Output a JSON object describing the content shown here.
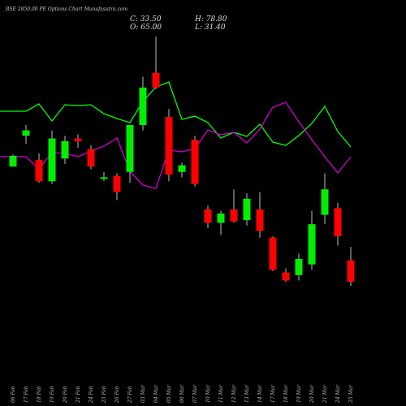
{
  "header": {
    "title": "BSE 2850.00 PE Options Chart Munafasutra.com",
    "close": "C: 33.50",
    "open": "O: 65.00",
    "high": "H: 78.80",
    "low": "L: 31.40"
  },
  "colors": {
    "background": "#000000",
    "up": "#00ee00",
    "down": "#ff0000",
    "line_green": "#00ff00",
    "line_magenta": "#cc00cc"
  },
  "chart_data": {
    "type": "candlestick",
    "title": "BSE 2850.00 PE Options Chart",
    "dates": [
      "06 Feb",
      "17 Feb",
      "18 Feb",
      "19 Feb",
      "20 Feb",
      "21 Feb",
      "24 Feb",
      "25 Feb",
      "26 Feb",
      "27 Feb",
      "03 Mar",
      "04 Mar",
      "05 Mar",
      "06 Mar",
      "07 Mar",
      "10 Mar",
      "11 Mar",
      "12 Mar",
      "13 Mar",
      "14 Mar",
      "17 Mar",
      "18 Mar",
      "19 Mar",
      "20 Mar",
      "21 Mar",
      "24 Mar",
      "25 Mar"
    ],
    "ohlc": [
      [
        84.5,
        89.0,
        84.5,
        88.5
      ],
      [
        96.0,
        100.0,
        93.0,
        98.0
      ],
      [
        87.0,
        89.5,
        78.5,
        79.0
      ],
      [
        79.0,
        98.0,
        78.0,
        95.0
      ],
      [
        87.5,
        96.0,
        85.5,
        94.0
      ],
      [
        95.0,
        96.5,
        91.5,
        94.0
      ],
      [
        91.0,
        92.5,
        83.5,
        84.5
      ],
      [
        80.0,
        82.5,
        79.0,
        80.5
      ],
      [
        81.0,
        82.0,
        72.0,
        75.0
      ],
      [
        82.5,
        100.0,
        78.5,
        100.0
      ],
      [
        100.0,
        118.0,
        98.0,
        114.0
      ],
      [
        119.5,
        133.0,
        113.5,
        114.0
      ],
      [
        103.0,
        106.0,
        79.0,
        81.5
      ],
      [
        82.5,
        86.0,
        80.5,
        85.0
      ],
      [
        94.5,
        96.0,
        77.0,
        78.0
      ],
      [
        68.5,
        70.0,
        61.5,
        63.5
      ],
      [
        63.5,
        68.0,
        59.0,
        67.0
      ],
      [
        68.5,
        76.0,
        63.5,
        64.0
      ],
      [
        64.5,
        74.5,
        62.5,
        72.5
      ],
      [
        68.5,
        75.0,
        58.0,
        60.5
      ],
      [
        58.0,
        58.5,
        45.5,
        46.0
      ],
      [
        45.0,
        46.5,
        41.5,
        42.0
      ],
      [
        44.0,
        52.0,
        42.0,
        50.0
      ],
      [
        48.0,
        68.0,
        46.0,
        63.0
      ],
      [
        66.5,
        82.0,
        63.0,
        76.0
      ],
      [
        69.0,
        71.0,
        55.0,
        58.5
      ],
      [
        49.5,
        54.5,
        40.0,
        41.5
      ]
    ],
    "line_series": [
      {
        "color": "#00ff00",
        "values": [
          137,
          137,
          128,
          149,
          129,
          130,
          129,
          140,
          146,
          151,
          125,
          107,
          101,
          147,
          143,
          151,
          170,
          163,
          168,
          153,
          175,
          179,
          167,
          152,
          131,
          162,
          181
        ]
      },
      {
        "color": "#cc00cc",
        "values": [
          193,
          193,
          208,
          188,
          189,
          193,
          186,
          180,
          170,
          211,
          228,
          232,
          185,
          187,
          183,
          160,
          166,
          163,
          176,
          159,
          132,
          126,
          150,
          172,
          193,
          213,
          193
        ]
      }
    ]
  }
}
